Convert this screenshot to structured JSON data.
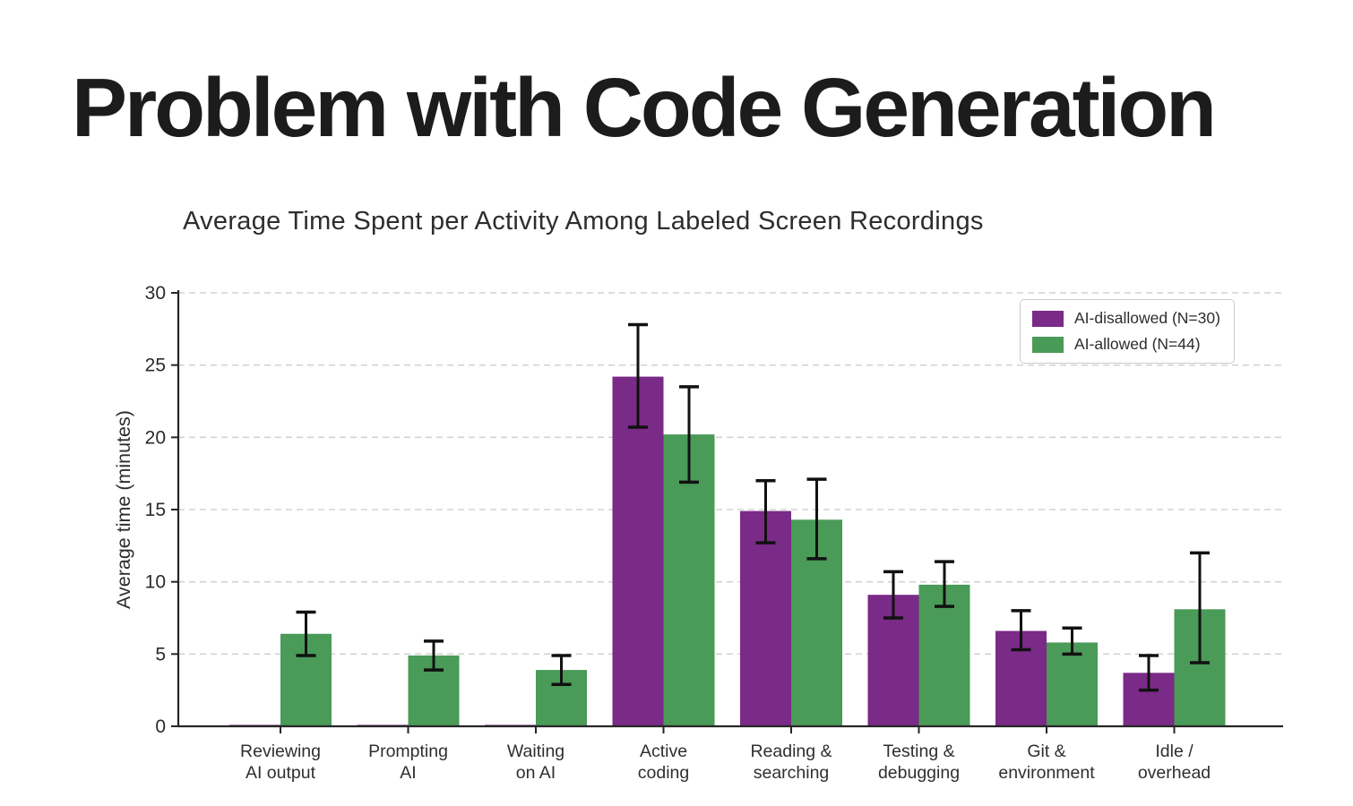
{
  "slide": {
    "title": "Problem with Code Generation",
    "background_color": "#ffffff"
  },
  "chart_data": {
    "type": "bar",
    "title": "Average Time Spent per Activity Among Labeled Screen Recordings",
    "xlabel": "",
    "ylabel": "Average time (minutes)",
    "ylim": [
      0,
      30
    ],
    "yticks": [
      0,
      5,
      10,
      15,
      20,
      25,
      30
    ],
    "grid": "horizontal dashed",
    "legend_position": "top-right",
    "error_bar_color": "#111111",
    "categories": [
      "Reviewing\nAI output",
      "Prompting\nAI",
      "Waiting\non AI",
      "Active\ncoding",
      "Reading &\nsearching",
      "Testing &\ndebugging",
      "Git &\nenvironment",
      "Idle /\noverhead"
    ],
    "series": [
      {
        "name": "AI-disallowed (N=30)",
        "color": "#7a2a87",
        "values": [
          0.1,
          0.1,
          0.1,
          24.2,
          14.9,
          9.1,
          6.6,
          3.7
        ],
        "error_bars": [
          null,
          null,
          null,
          [
            20.7,
            27.8
          ],
          [
            12.7,
            17.0
          ],
          [
            7.5,
            10.7
          ],
          [
            5.3,
            8.0
          ],
          [
            2.5,
            4.9
          ]
        ]
      },
      {
        "name": "AI-allowed (N=44)",
        "color": "#4a9a58",
        "values": [
          6.4,
          4.9,
          3.9,
          20.2,
          14.3,
          9.8,
          5.8,
          8.1
        ],
        "error_bars": [
          [
            4.9,
            7.9
          ],
          [
            3.9,
            5.9
          ],
          [
            2.9,
            4.9
          ],
          [
            16.9,
            23.5
          ],
          [
            11.6,
            17.1
          ],
          [
            8.3,
            11.4
          ],
          [
            5.0,
            6.8
          ],
          [
            4.4,
            12.0
          ]
        ]
      }
    ]
  }
}
